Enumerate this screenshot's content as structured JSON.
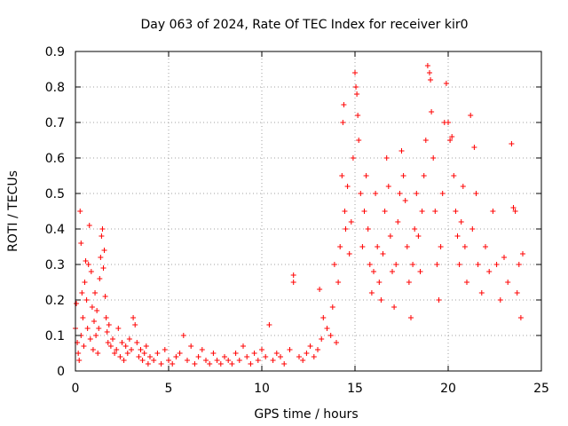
{
  "chart_data": {
    "type": "scatter",
    "title": "Day 063 of 2024, Rate Of TEC Index for receiver kir0",
    "xlabel": "GPS time / hours",
    "ylabel": "ROTI / TECUs",
    "xlim": [
      0,
      25
    ],
    "ylim": [
      0,
      0.9
    ],
    "grid": true,
    "marker": "plus",
    "marker_color": "#ff0000",
    "xticks": [
      "0",
      "5",
      "10",
      "15",
      "20",
      "25"
    ],
    "yticks": [
      "0",
      "0.1",
      "0.2",
      "0.3",
      "0.4",
      "0.5",
      "0.6",
      "0.7",
      "0.8",
      "0.9"
    ],
    "series": [
      {
        "name": "ROTI",
        "points": [
          [
            0.0,
            0.12
          ],
          [
            0.05,
            0.19
          ],
          [
            0.1,
            0.08
          ],
          [
            0.15,
            0.05
          ],
          [
            0.2,
            0.03
          ],
          [
            0.25,
            0.45
          ],
          [
            0.3,
            0.36
          ],
          [
            0.3,
            0.1
          ],
          [
            0.35,
            0.22
          ],
          [
            0.4,
            0.15
          ],
          [
            0.45,
            0.07
          ],
          [
            0.5,
            0.25
          ],
          [
            0.55,
            0.31
          ],
          [
            0.6,
            0.2
          ],
          [
            0.65,
            0.12
          ],
          [
            0.7,
            0.3
          ],
          [
            0.75,
            0.41
          ],
          [
            0.8,
            0.09
          ],
          [
            0.85,
            0.28
          ],
          [
            0.9,
            0.18
          ],
          [
            0.95,
            0.06
          ],
          [
            1.0,
            0.14
          ],
          [
            1.05,
            0.22
          ],
          [
            1.1,
            0.1
          ],
          [
            1.15,
            0.17
          ],
          [
            1.2,
            0.05
          ],
          [
            1.25,
            0.12
          ],
          [
            1.3,
            0.26
          ],
          [
            1.35,
            0.32
          ],
          [
            1.4,
            0.38
          ],
          [
            1.45,
            0.4
          ],
          [
            1.5,
            0.29
          ],
          [
            1.55,
            0.34
          ],
          [
            1.6,
            0.21
          ],
          [
            1.65,
            0.15
          ],
          [
            1.7,
            0.11
          ],
          [
            1.75,
            0.08
          ],
          [
            1.8,
            0.13
          ],
          [
            1.9,
            0.07
          ],
          [
            2.0,
            0.09
          ],
          [
            2.1,
            0.05
          ],
          [
            2.2,
            0.06
          ],
          [
            2.3,
            0.12
          ],
          [
            2.4,
            0.04
          ],
          [
            2.5,
            0.08
          ],
          [
            2.6,
            0.03
          ],
          [
            2.7,
            0.07
          ],
          [
            2.8,
            0.05
          ],
          [
            2.9,
            0.09
          ],
          [
            3.0,
            0.06
          ],
          [
            3.1,
            0.15
          ],
          [
            3.2,
            0.13
          ],
          [
            3.3,
            0.08
          ],
          [
            3.4,
            0.04
          ],
          [
            3.5,
            0.06
          ],
          [
            3.6,
            0.03
          ],
          [
            3.7,
            0.05
          ],
          [
            3.8,
            0.07
          ],
          [
            3.9,
            0.02
          ],
          [
            4.0,
            0.04
          ],
          [
            4.2,
            0.03
          ],
          [
            4.4,
            0.05
          ],
          [
            4.6,
            0.02
          ],
          [
            4.8,
            0.06
          ],
          [
            5.0,
            0.03
          ],
          [
            5.2,
            0.02
          ],
          [
            5.4,
            0.04
          ],
          [
            5.6,
            0.05
          ],
          [
            5.8,
            0.1
          ],
          [
            6.0,
            0.03
          ],
          [
            6.2,
            0.07
          ],
          [
            6.4,
            0.02
          ],
          [
            6.6,
            0.04
          ],
          [
            6.8,
            0.06
          ],
          [
            7.0,
            0.03
          ],
          [
            7.2,
            0.02
          ],
          [
            7.4,
            0.05
          ],
          [
            7.6,
            0.03
          ],
          [
            7.8,
            0.02
          ],
          [
            8.0,
            0.04
          ],
          [
            8.2,
            0.03
          ],
          [
            8.4,
            0.02
          ],
          [
            8.6,
            0.05
          ],
          [
            8.8,
            0.03
          ],
          [
            9.0,
            0.07
          ],
          [
            9.2,
            0.04
          ],
          [
            9.4,
            0.02
          ],
          [
            9.6,
            0.05
          ],
          [
            9.8,
            0.03
          ],
          [
            10.0,
            0.06
          ],
          [
            10.2,
            0.04
          ],
          [
            10.4,
            0.13
          ],
          [
            10.6,
            0.03
          ],
          [
            10.8,
            0.05
          ],
          [
            11.0,
            0.04
          ],
          [
            11.2,
            0.02
          ],
          [
            11.5,
            0.06
          ],
          [
            11.7,
            0.27
          ],
          [
            11.7,
            0.25
          ],
          [
            12.0,
            0.04
          ],
          [
            12.2,
            0.03
          ],
          [
            12.4,
            0.05
          ],
          [
            12.6,
            0.07
          ],
          [
            12.8,
            0.04
          ],
          [
            13.0,
            0.06
          ],
          [
            13.1,
            0.23
          ],
          [
            13.2,
            0.09
          ],
          [
            13.3,
            0.15
          ],
          [
            13.5,
            0.12
          ],
          [
            13.7,
            0.1
          ],
          [
            13.8,
            0.18
          ],
          [
            13.9,
            0.3
          ],
          [
            14.0,
            0.08
          ],
          [
            14.1,
            0.25
          ],
          [
            14.2,
            0.35
          ],
          [
            14.3,
            0.55
          ],
          [
            14.35,
            0.7
          ],
          [
            14.4,
            0.75
          ],
          [
            14.45,
            0.45
          ],
          [
            14.5,
            0.4
          ],
          [
            14.6,
            0.52
          ],
          [
            14.7,
            0.33
          ],
          [
            14.8,
            0.42
          ],
          [
            14.9,
            0.6
          ],
          [
            15.0,
            0.84
          ],
          [
            15.05,
            0.8
          ],
          [
            15.1,
            0.78
          ],
          [
            15.15,
            0.72
          ],
          [
            15.2,
            0.65
          ],
          [
            15.3,
            0.5
          ],
          [
            15.4,
            0.35
          ],
          [
            15.5,
            0.45
          ],
          [
            15.6,
            0.55
          ],
          [
            15.7,
            0.4
          ],
          [
            15.8,
            0.3
          ],
          [
            15.9,
            0.22
          ],
          [
            16.0,
            0.28
          ],
          [
            16.1,
            0.5
          ],
          [
            16.2,
            0.35
          ],
          [
            16.3,
            0.25
          ],
          [
            16.4,
            0.2
          ],
          [
            16.5,
            0.33
          ],
          [
            16.6,
            0.45
          ],
          [
            16.7,
            0.6
          ],
          [
            16.8,
            0.52
          ],
          [
            16.9,
            0.38
          ],
          [
            17.0,
            0.28
          ],
          [
            17.1,
            0.18
          ],
          [
            17.2,
            0.3
          ],
          [
            17.3,
            0.42
          ],
          [
            17.4,
            0.5
          ],
          [
            17.5,
            0.62
          ],
          [
            17.6,
            0.55
          ],
          [
            17.7,
            0.48
          ],
          [
            17.8,
            0.35
          ],
          [
            17.9,
            0.25
          ],
          [
            18.0,
            0.15
          ],
          [
            18.1,
            0.3
          ],
          [
            18.2,
            0.4
          ],
          [
            18.3,
            0.5
          ],
          [
            18.4,
            0.38
          ],
          [
            18.5,
            0.28
          ],
          [
            18.6,
            0.45
          ],
          [
            18.7,
            0.55
          ],
          [
            18.8,
            0.65
          ],
          [
            18.9,
            0.86
          ],
          [
            19.0,
            0.84
          ],
          [
            19.05,
            0.82
          ],
          [
            19.1,
            0.73
          ],
          [
            19.2,
            0.6
          ],
          [
            19.3,
            0.45
          ],
          [
            19.4,
            0.3
          ],
          [
            19.5,
            0.2
          ],
          [
            19.6,
            0.35
          ],
          [
            19.7,
            0.5
          ],
          [
            19.8,
            0.7
          ],
          [
            19.9,
            0.81
          ],
          [
            20.0,
            0.7
          ],
          [
            20.1,
            0.65
          ],
          [
            20.2,
            0.66
          ],
          [
            20.3,
            0.55
          ],
          [
            20.4,
            0.45
          ],
          [
            20.5,
            0.38
          ],
          [
            20.6,
            0.3
          ],
          [
            20.7,
            0.42
          ],
          [
            20.8,
            0.52
          ],
          [
            20.9,
            0.35
          ],
          [
            21.0,
            0.25
          ],
          [
            21.2,
            0.72
          ],
          [
            21.3,
            0.4
          ],
          [
            21.4,
            0.63
          ],
          [
            21.5,
            0.5
          ],
          [
            21.6,
            0.3
          ],
          [
            21.8,
            0.22
          ],
          [
            22.0,
            0.35
          ],
          [
            22.2,
            0.28
          ],
          [
            22.4,
            0.45
          ],
          [
            22.6,
            0.3
          ],
          [
            22.8,
            0.2
          ],
          [
            23.0,
            0.32
          ],
          [
            23.2,
            0.25
          ],
          [
            23.4,
            0.64
          ],
          [
            23.5,
            0.46
          ],
          [
            23.6,
            0.45
          ],
          [
            23.7,
            0.22
          ],
          [
            23.8,
            0.3
          ],
          [
            23.9,
            0.15
          ],
          [
            24.0,
            0.33
          ]
        ]
      }
    ]
  }
}
